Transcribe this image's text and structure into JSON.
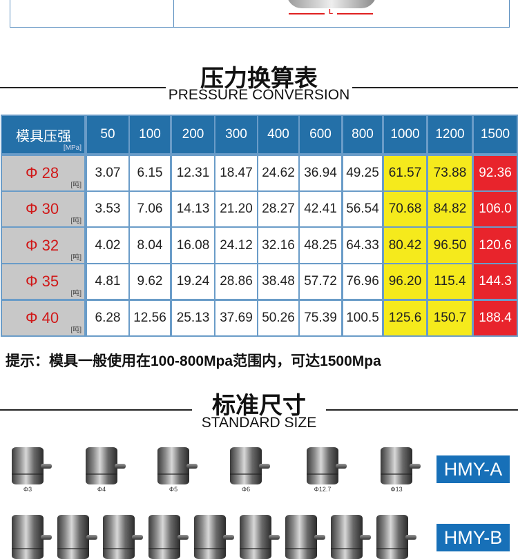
{
  "top_figure": {
    "dimension_label": "L"
  },
  "pressure": {
    "title_cn": "压力换算表",
    "title_en": "PRESSURE CONVERSION"
  },
  "table": {
    "corner_label": "模具压强",
    "corner_unit": "[MPa]",
    "row_unit": "[吨]",
    "columns": [
      "50",
      "100",
      "200",
      "300",
      "400",
      "600",
      "800",
      "1000",
      "1200",
      "1500"
    ],
    "highlight_colors": {
      "yellow": "#f5ea1c",
      "red": "#e8242c",
      "header": "#2470a8"
    },
    "rows": [
      {
        "label": "Φ 28",
        "values": [
          "3.07",
          "6.15",
          "12.31",
          "18.47",
          "24.62",
          "36.94",
          "49.25",
          "61.57",
          "73.88",
          "92.36"
        ]
      },
      {
        "label": "Φ 30",
        "values": [
          "3.53",
          "7.06",
          "14.13",
          "21.20",
          "28.27",
          "42.41",
          "56.54",
          "70.68",
          "84.82",
          "106.0"
        ]
      },
      {
        "label": "Φ 32",
        "values": [
          "4.02",
          "8.04",
          "16.08",
          "24.12",
          "32.16",
          "48.25",
          "64.33",
          "80.42",
          "96.50",
          "120.6"
        ]
      },
      {
        "label": "Φ 35",
        "values": [
          "4.81",
          "9.62",
          "19.24",
          "28.86",
          "38.48",
          "57.72",
          "76.96",
          "96.20",
          "115.4",
          "144.3"
        ]
      },
      {
        "label": "Φ 40",
        "values": [
          "6.28",
          "12.56",
          "25.13",
          "37.69",
          "50.26",
          "75.39",
          "100.5",
          "125.6",
          "150.7",
          "188.4"
        ]
      }
    ]
  },
  "tip": "提示：模具一般使用在100-800Mpa范围内，可达1500Mpa",
  "standard": {
    "title_cn": "标准尺寸",
    "title_en": "STANDARD SIZE"
  },
  "hmy_a": {
    "badge": "HMY-A",
    "sizes": [
      "Φ3",
      "Φ4",
      "Φ5",
      "Φ6",
      "Φ12.7",
      "Φ13"
    ]
  },
  "hmy_b": {
    "badge": "HMY-B",
    "count": 9
  }
}
